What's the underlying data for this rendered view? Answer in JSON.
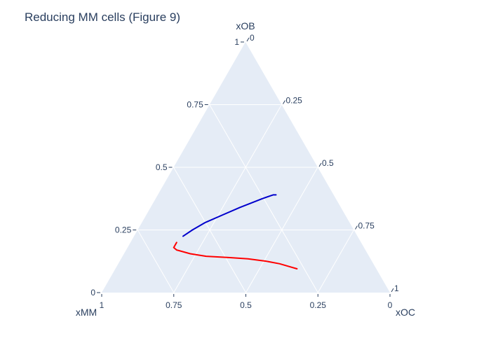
{
  "chart_data": {
    "type": "ternary",
    "title": "Reducing MM cells (Figure 9)",
    "axes": {
      "a": {
        "label": "xOB",
        "ticks": [
          0,
          0.25,
          0.5,
          0.75,
          1
        ],
        "tick_labels": [
          "0",
          "0.25",
          "0.5",
          "0.75",
          "1"
        ]
      },
      "b": {
        "label": "xMM",
        "ticks": [
          0,
          0.25,
          0.5,
          0.75,
          1
        ],
        "tick_labels": [
          "0",
          "0.25",
          "0.5",
          "0.75",
          "1"
        ]
      },
      "c": {
        "label": "xOC",
        "ticks": [
          0,
          0.25,
          0.5,
          0.75,
          1
        ],
        "tick_labels": [
          "0",
          "0.25",
          "0.5",
          "0.75",
          "1"
        ]
      }
    },
    "grid": true,
    "background_color": "#e5ecf6",
    "grid_color": "#ffffff",
    "text_color": "#2a3f5f",
    "series": [
      {
        "color": "#0000cc",
        "points": [
          {
            "a": 0.39,
            "c": 0.41
          },
          {
            "a": 0.39,
            "c": 0.4
          },
          {
            "a": 0.385,
            "c": 0.39
          },
          {
            "a": 0.375,
            "c": 0.37
          },
          {
            "a": 0.36,
            "c": 0.345
          },
          {
            "a": 0.34,
            "c": 0.31
          },
          {
            "a": 0.31,
            "c": 0.265
          },
          {
            "a": 0.28,
            "c": 0.22
          },
          {
            "a": 0.25,
            "c": 0.19
          },
          {
            "a": 0.225,
            "c": 0.17
          }
        ]
      },
      {
        "color": "#ff0000",
        "points": [
          {
            "a": 0.2,
            "c": 0.16
          },
          {
            "a": 0.18,
            "c": 0.16
          },
          {
            "a": 0.17,
            "c": 0.175
          },
          {
            "a": 0.155,
            "c": 0.23
          },
          {
            "a": 0.145,
            "c": 0.29
          },
          {
            "a": 0.14,
            "c": 0.37
          },
          {
            "a": 0.135,
            "c": 0.44
          },
          {
            "a": 0.125,
            "c": 0.51
          },
          {
            "a": 0.115,
            "c": 0.56
          },
          {
            "a": 0.095,
            "c": 0.63
          }
        ]
      }
    ]
  }
}
